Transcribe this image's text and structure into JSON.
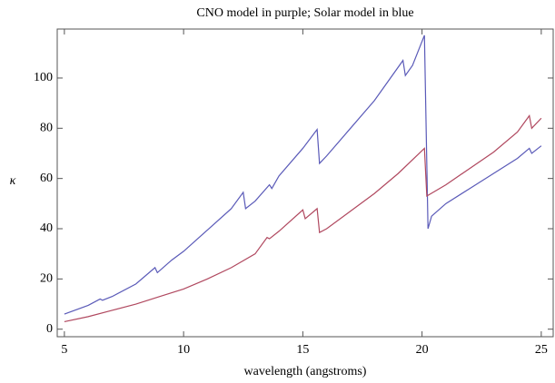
{
  "chart_data": {
    "type": "line",
    "title": "CNO model in purple; Solar model in blue",
    "xlabel": "wavelength (angstroms)",
    "ylabel": "κ",
    "series": [
      {
        "color": "#5a5ab8",
        "x": [
          5,
          6,
          6.5,
          6.6,
          7,
          8,
          8.8,
          8.9,
          9.5,
          10,
          11,
          12,
          12.5,
          12.6,
          13,
          13.6,
          13.7,
          14,
          15,
          15.6,
          15.7,
          16,
          17,
          18,
          19.2,
          19.3,
          19.6,
          20.1,
          20.25,
          20.4,
          21,
          22,
          23,
          24,
          24.5,
          24.6,
          25
        ],
        "values": [
          6,
          9.5,
          12,
          11.5,
          13,
          18,
          24.5,
          22.5,
          27.5,
          31,
          39.5,
          48,
          54.5,
          48,
          51,
          57.5,
          56,
          61,
          72,
          79.5,
          66,
          69,
          80,
          91,
          107,
          101,
          105,
          117,
          40,
          45,
          50,
          56,
          62,
          68,
          72,
          70,
          73
        ]
      },
      {
        "color": "#b0485f",
        "x": [
          5,
          6,
          7,
          8,
          9,
          10,
          11,
          12,
          13,
          13.5,
          13.6,
          14,
          15,
          15.1,
          15.6,
          15.7,
          16,
          17,
          18,
          19,
          20.1,
          20.2,
          21,
          22,
          23,
          24,
          24.5,
          24.6,
          25
        ],
        "values": [
          3,
          5,
          7.5,
          10,
          13,
          16,
          20,
          24.5,
          30,
          36.5,
          36,
          39,
          47.5,
          44,
          48,
          38.5,
          40,
          47,
          54,
          62,
          72,
          53,
          57.5,
          64,
          70.5,
          78.5,
          85,
          80,
          84
        ]
      }
    ],
    "xlim": [
      4.7,
      25.5
    ],
    "ylim": [
      -3,
      119.5
    ],
    "xticks": [
      5,
      10,
      15,
      20,
      25
    ],
    "yticks": [
      0,
      20,
      40,
      60,
      80,
      100
    ]
  }
}
